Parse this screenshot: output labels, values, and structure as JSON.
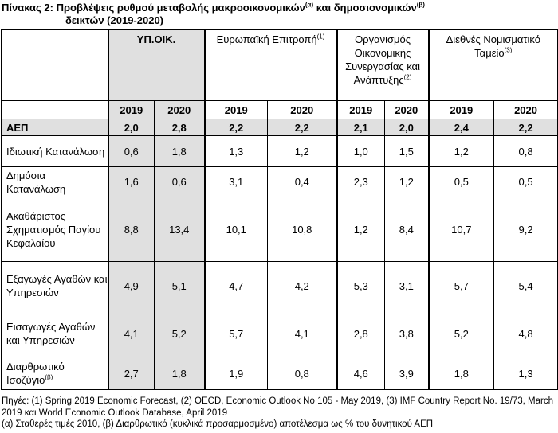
{
  "title": {
    "line1_prefix": "Πίνακας 2: Προβλέψεις ρυθμού μεταβολής μακροοικονομικών",
    "sup_a": "(α)",
    "line1_middle": " και δημοσιονομικών",
    "sup_b": "(β)",
    "line2": "δεικτών (2019-2020)"
  },
  "orgs": [
    {
      "name": "ΥΠ.ΟΙΚ.",
      "sup": ""
    },
    {
      "name": "Ευρωπαϊκή Επιτροπή",
      "sup": "(1)"
    },
    {
      "name": "Οργανισμός Οικονομικής Συνεργασίας και Ανάπτυξης",
      "sup": "(2)"
    },
    {
      "name": "Διεθνές Νομισματικό Ταμείο",
      "sup": "(3)"
    }
  ],
  "years": [
    "2019",
    "2020",
    "2019",
    "2020",
    "2019",
    "2020",
    "2019",
    "2020"
  ],
  "rows": [
    {
      "label": "ΑΕΠ",
      "sup": "",
      "values": [
        "2,0",
        "2,8",
        "2,2",
        "2,2",
        "2,1",
        "2,0",
        "2,4",
        "2,2"
      ]
    },
    {
      "label": "Ιδιωτική Κατανάλωση",
      "sup": "",
      "values": [
        "0,6",
        "1,8",
        "1,3",
        "1,2",
        "1,0",
        "1,5",
        "1,2",
        "0,8"
      ]
    },
    {
      "label": "Δημόσια Κατανάλωση",
      "sup": "",
      "values": [
        "1,6",
        "0,6",
        "3,1",
        "0,4",
        "2,3",
        "1,2",
        "0,5",
        "0,5"
      ]
    },
    {
      "label": "Ακαθάριστος Σχηματισμός Παγίου Κεφαλαίου",
      "sup": "",
      "values": [
        "8,8",
        "13,4",
        "10,1",
        "10,8",
        "1,2",
        "8,4",
        "10,7",
        "9,2"
      ]
    },
    {
      "label": "Εξαγωγές Αγαθών και Υπηρεσιών",
      "sup": "",
      "values": [
        "4,9",
        "5,1",
        "4,7",
        "4,2",
        "5,3",
        "3,1",
        "5,7",
        "5,4"
      ]
    },
    {
      "label": "Εισαγωγές Αγαθών και Υπηρεσιών",
      "sup": "",
      "values": [
        "4,1",
        "5,2",
        "5,7",
        "4,1",
        "2,8",
        "3,8",
        "5,2",
        "4,8"
      ]
    },
    {
      "label": "Διαρθρωτικό Ισοζύγιο",
      "sup": "(β)",
      "values": [
        "2,7",
        "1,8",
        "1,9",
        "0,8",
        "4,6",
        "3,9",
        "1,8",
        "1,3"
      ]
    }
  ],
  "notes": {
    "sources": "Πηγές: (1) Spring 2019 Economic Forecast, (2) OECD, Economic Outlook No 105 - May 2019, (3) IMF Country Report No. 19/73, March 2019 και World Economic Outlook Database, April 2019",
    "footnote": "(α) Σταθερές τιμές 2010, (β) Διαρθρωτικό (κυκλικά προσαρμοσμένο) αποτέλεσμα ως % του δυνητικού ΑΕΠ"
  },
  "colors": {
    "shade": "#e0e0e0",
    "border": "#000000"
  }
}
